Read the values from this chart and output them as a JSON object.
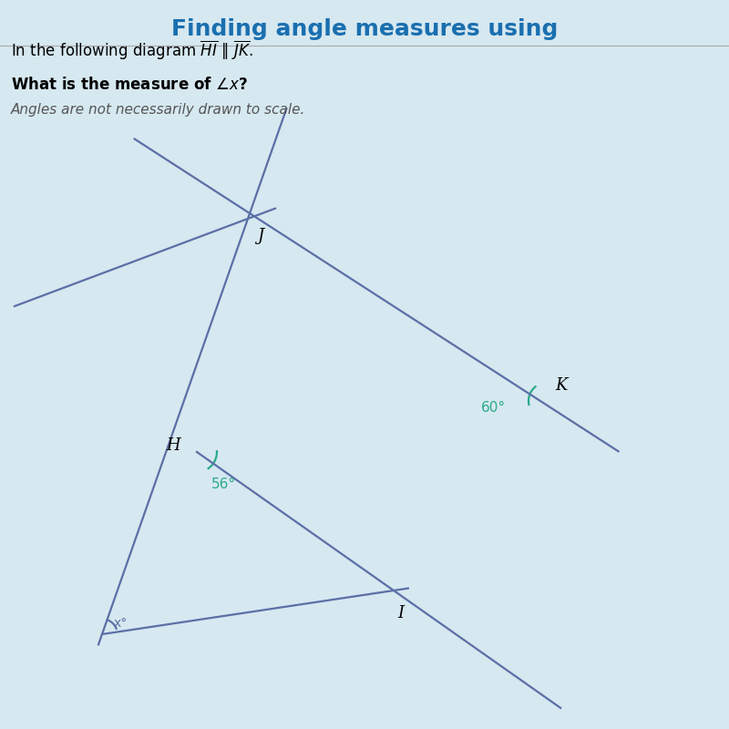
{
  "title": "Finding angle measures using",
  "title_color": "#1a6faf",
  "title_fontsize": 18,
  "bg_color": "#d6e8f0",
  "line_color": "#5b6fa6",
  "angle_color_green": "#2aaa8a",
  "angle_color_blue": "#5b6fa6",
  "angle_56": "56°",
  "angle_60": "60°",
  "angle_x": "x°",
  "label_H": "H",
  "label_I": "I",
  "label_J": "J",
  "label_K": "K",
  "note": "Angles are not necessarily drawn to scale."
}
